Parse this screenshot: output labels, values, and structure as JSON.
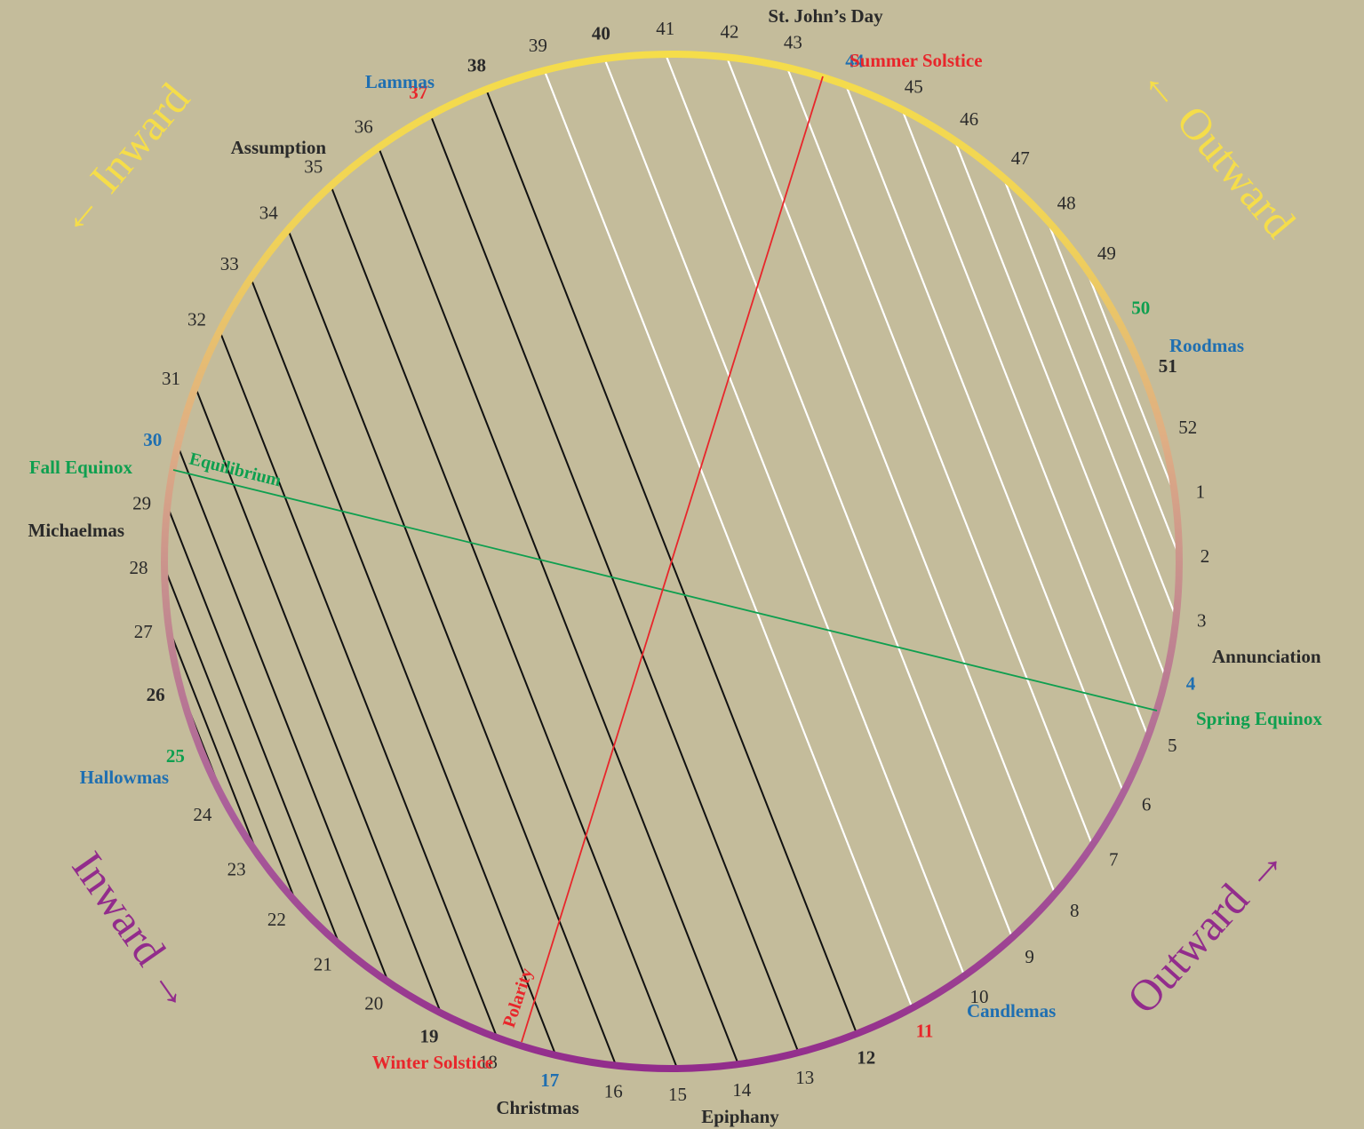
{
  "colors": {
    "background": "#c4bc9b",
    "summer": "#f5dd4a",
    "winter": "#922c8c",
    "blue_festival": "#1f6fb1",
    "red_festival": "#e8262b",
    "green_festival": "#0e9f4f",
    "dark_text": "#2a2a2a",
    "left_chords": "#111111",
    "right_chords": "#ffffff"
  },
  "weeks": [
    "1",
    "2",
    "3",
    "4",
    "5",
    "6",
    "7",
    "8",
    "9",
    "10",
    "11",
    "12",
    "13",
    "14",
    "15",
    "16",
    "17",
    "18",
    "19",
    "20",
    "21",
    "22",
    "23",
    "24",
    "25",
    "26",
    "27",
    "28",
    "29",
    "30",
    "31",
    "32",
    "33",
    "34",
    "35",
    "36",
    "37",
    "38",
    "39",
    "40",
    "41",
    "42",
    "43",
    "44",
    "45",
    "46",
    "47",
    "48",
    "49",
    "50",
    "51",
    "52"
  ],
  "festivals": {
    "st_johns_day": "St. John’s Day",
    "summer_solstice": "Summer Solstice",
    "roodmas": "Roodmas",
    "lammas": "Lammas",
    "assumption": "Assumption",
    "fall_equinox": "Fall Equinox",
    "michaelmas": "Michaelmas",
    "hallowmas": "Hallowmas",
    "winter_solstice": "Winter Solstice",
    "christmas": "Christmas",
    "epiphany": "Epiphany",
    "candlemas": "Candlemas",
    "spring_equinox": "Spring Equinox",
    "annunciation": "Annunciation"
  },
  "quadrants": {
    "top_left": "← Inward",
    "top_right": "← Outward",
    "bottom_left": "Inward →",
    "bottom_right": "Outward →"
  },
  "axes": {
    "equilibrium": "Equilibrium",
    "polarity": "Polarity"
  }
}
